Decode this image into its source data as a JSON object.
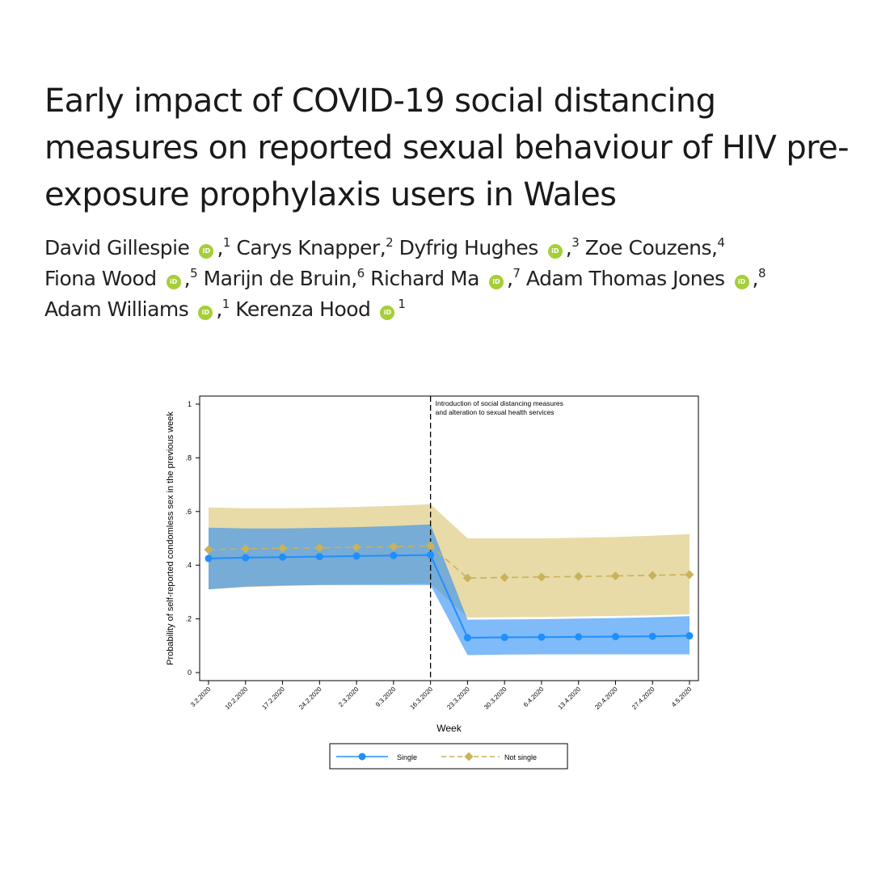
{
  "paper": {
    "title": "Early impact of COVID-19 social distancing measures on reported sexual behaviour of HIV pre-exposure prophylaxis users in Wales",
    "authors": [
      {
        "name": "David Gillespie",
        "orcid": true,
        "aff": "1",
        "sep": ","
      },
      {
        "name": "Carys Knapper",
        "orcid": false,
        "aff": "2",
        "sep": ","
      },
      {
        "name": "Dyfrig Hughes",
        "orcid": true,
        "aff": "3",
        "sep": ","
      },
      {
        "name": "Zoe Couzens",
        "orcid": false,
        "aff": "4",
        "sep": ","
      },
      {
        "name": "Fiona Wood",
        "orcid": true,
        "aff": "5",
        "sep": ","
      },
      {
        "name": "Marijn de Bruin",
        "orcid": false,
        "aff": "6",
        "sep": ","
      },
      {
        "name": "Richard Ma",
        "orcid": true,
        "aff": "7",
        "sep": ","
      },
      {
        "name": "Adam Thomas Jones",
        "orcid": true,
        "aff": "8",
        "sep": ","
      },
      {
        "name": "Adam Williams",
        "orcid": true,
        "aff": "1",
        "sep": ","
      },
      {
        "name": "Kerenza Hood",
        "orcid": true,
        "aff": "1",
        "sep": ""
      }
    ],
    "orcid_icon_text": "iD",
    "orcid_color": "#a6ce39"
  },
  "chart_data": {
    "type": "line",
    "title": "",
    "xlabel": "Week",
    "ylabel": "Probability of self-reported condomless sex in the previous week",
    "categories": [
      "3.2.2020",
      "10.2.2020",
      "17.2.2020",
      "24.2.2020",
      "2.3.2020",
      "9.3.2020",
      "16.3.2020",
      "23.3.2020",
      "30.3.2020",
      "6.4.2020",
      "13.4.2020",
      "20.4.2020",
      "27.4.2020",
      "4.5.2020"
    ],
    "yticks": [
      0,
      0.2,
      0.4,
      0.6,
      0.8,
      1
    ],
    "ytick_labels": [
      "0",
      ".2",
      ".4",
      ".6",
      ".8",
      "1"
    ],
    "ylim": [
      -0.03,
      1.03
    ],
    "grid": false,
    "legend_position": "bottom",
    "series": [
      {
        "name": "Single",
        "color": "#1f8fff",
        "band_color": "#2a8cf5",
        "marker": "circle",
        "line_style": "solid",
        "values": [
          0.425,
          0.428,
          0.43,
          0.432,
          0.434,
          0.436,
          0.438,
          0.13,
          0.131,
          0.132,
          0.133,
          0.134,
          0.135,
          0.137
        ],
        "lower": [
          0.31,
          0.32,
          0.324,
          0.326,
          0.326,
          0.326,
          0.326,
          0.065,
          0.067,
          0.068,
          0.068,
          0.068,
          0.068,
          0.068
        ],
        "upper": [
          0.54,
          0.537,
          0.537,
          0.539,
          0.542,
          0.546,
          0.552,
          0.197,
          0.198,
          0.199,
          0.201,
          0.203,
          0.206,
          0.21
        ]
      },
      {
        "name": "Not single",
        "color": "#c9b25a",
        "band_color": "#e8dba8",
        "marker": "diamond",
        "line_style": "dashed",
        "values": [
          0.458,
          0.461,
          0.463,
          0.465,
          0.467,
          0.469,
          0.472,
          0.352,
          0.354,
          0.356,
          0.358,
          0.36,
          0.362,
          0.365
        ],
        "lower": [
          0.31,
          0.318,
          0.322,
          0.326,
          0.328,
          0.33,
          0.332,
          0.205,
          0.206,
          0.207,
          0.209,
          0.211,
          0.213,
          0.217
        ],
        "upper": [
          0.615,
          0.612,
          0.612,
          0.614,
          0.617,
          0.621,
          0.627,
          0.5,
          0.5,
          0.5,
          0.502,
          0.505,
          0.51,
          0.516
        ]
      }
    ],
    "annotation": {
      "at_index": 6,
      "lines": [
        "Introduction of social distancing measures",
        "and alteration to sexual health services"
      ]
    }
  }
}
